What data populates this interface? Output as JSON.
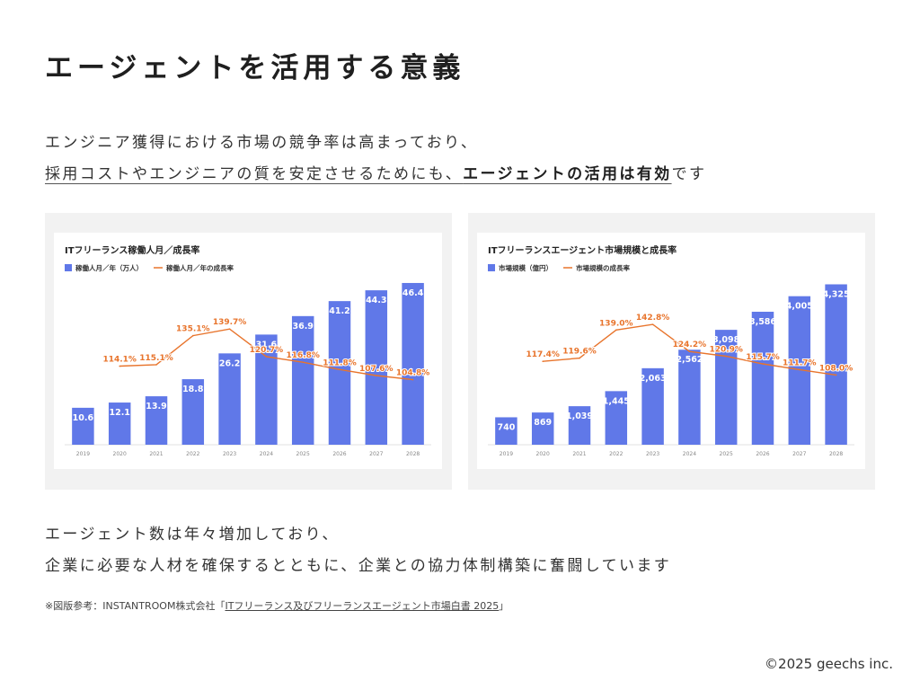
{
  "title": "エージェントを活用する意義",
  "lead": {
    "line1": "エンジニア獲得における市場の競争率は高まっており、",
    "line2_underlined": "採用コストやエンジニアの質を安定させるためにも、",
    "line2_bold": "エージェントの活用は有効",
    "line2_tail": "です"
  },
  "body": {
    "line1": "エージェント数は年々増加しており、",
    "line2": "企業に必要な人材を確保するとともに、企業との協力体制構築に奮闘しています"
  },
  "source": {
    "prefix": "※図版参考：INSTANTROOM株式会社「",
    "link_text": "ITフリーランス及びフリーランスエージェント市場白書 2025",
    "suffix": "」"
  },
  "copyright": "©2025 geechs inc.",
  "colors": {
    "bar": "#6078e8",
    "line": "#e8742c",
    "line_label": "#e8742c",
    "bar_label": "#ffffff"
  },
  "chart_data": [
    {
      "type": "bar",
      "title": "ITフリーランス稼働人月／成長率",
      "categories": [
        "2019",
        "2020",
        "2021",
        "2022",
        "2023",
        "2024",
        "2025",
        "2026",
        "2027",
        "2028"
      ],
      "series": [
        {
          "name": "稼働人月／年（万人）",
          "kind": "bar",
          "values": [
            10.6,
            12.1,
            13.9,
            18.8,
            26.2,
            31.6,
            36.9,
            41.2,
            44.3,
            46.4
          ],
          "labels": [
            "10.6",
            "12.1",
            "13.9",
            "18.8",
            "26.2",
            "31.6",
            "36.9",
            "41.2",
            "44.3",
            "46.4"
          ]
        },
        {
          "name": "稼働人月／年の成長率",
          "kind": "line",
          "values": [
            null,
            114.1,
            115.1,
            135.1,
            139.7,
            120.7,
            116.8,
            111.8,
            107.6,
            104.8
          ],
          "labels": [
            null,
            "114.1%",
            "115.1%",
            "135.1%",
            "139.7%",
            "120.7%",
            "116.8%",
            "111.8%",
            "107.6%",
            "104.8%"
          ]
        }
      ],
      "ylim": [
        0,
        50
      ],
      "y2lim": [
        60,
        180
      ],
      "legend": "top-left",
      "grid": false
    },
    {
      "type": "bar",
      "title": "ITフリーランスエージェント市場規模と成長率",
      "categories": [
        "2019",
        "2020",
        "2021",
        "2022",
        "2023",
        "2024",
        "2025",
        "2026",
        "2027",
        "2028"
      ],
      "series": [
        {
          "name": "市場規模（億円）",
          "kind": "bar",
          "values": [
            740,
            869,
            1039,
            1445,
            2063,
            2562,
            3098,
            3586,
            4005,
            4325
          ],
          "labels": [
            "740",
            "869",
            "1,039",
            "1,445",
            "2,063",
            "2,562",
            "3,098",
            "3,586",
            "4,005",
            "4,325"
          ]
        },
        {
          "name": "市場規模の成長率",
          "kind": "line",
          "values": [
            null,
            117.4,
            119.6,
            139.0,
            142.8,
            124.2,
            120.9,
            115.7,
            111.7,
            108.0
          ],
          "labels": [
            null,
            "117.4%",
            "119.6%",
            "139.0%",
            "142.8%",
            "124.2%",
            "120.9%",
            "115.7%",
            "111.7%",
            "108.0%"
          ]
        }
      ],
      "ylim": [
        0,
        4700
      ],
      "y2lim": [
        60,
        180
      ],
      "legend": "top-left",
      "grid": false
    }
  ]
}
